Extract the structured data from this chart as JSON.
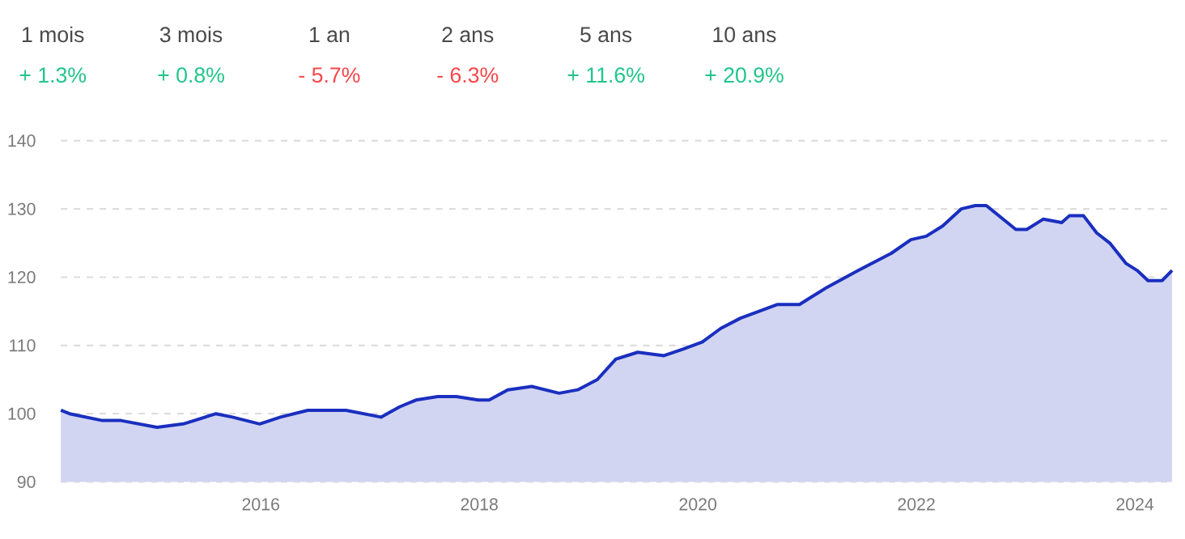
{
  "chart_data": {
    "type": "area",
    "annotations": [
      "1 mois",
      "+ 1.3%",
      "3 mois",
      "+ 0.8%",
      "1 an",
      "- 5.7%",
      "2 ans",
      "- 6.3%",
      "5 ans",
      "+ 11.6%",
      "10 ans",
      "+ 20.9%"
    ],
    "x": [
      2014.17,
      2014.25,
      2014.55,
      2014.72,
      2015.05,
      2015.29,
      2015.59,
      2015.74,
      2015.99,
      2016.18,
      2016.43,
      2016.78,
      2017.1,
      2017.27,
      2017.42,
      2017.62,
      2017.79,
      2017.99,
      2018.09,
      2018.26,
      2018.48,
      2018.73,
      2018.9,
      2019.08,
      2019.25,
      2019.45,
      2019.69,
      2019.87,
      2020.04,
      2020.21,
      2020.39,
      2020.56,
      2020.73,
      2020.93,
      2021.03,
      2021.18,
      2021.47,
      2021.77,
      2021.95,
      2022.09,
      2022.24,
      2022.41,
      2022.54,
      2022.64,
      2022.91,
      2023.01,
      2023.16,
      2023.33,
      2023.4,
      2023.53,
      2023.65,
      2023.77,
      2023.92,
      2024.02,
      2024.12,
      2024.25,
      2024.34
    ],
    "series": [
      {
        "color": "#1a2fbf",
        "values": [
          100.5,
          100,
          99,
          99,
          98,
          98.5,
          100,
          99.5,
          98.5,
          99.5,
          100.5,
          100.5,
          99.5,
          101,
          102,
          102.5,
          102.5,
          102,
          102,
          103.5,
          104,
          103,
          103.5,
          105,
          108,
          109,
          108.5,
          109.5,
          110.5,
          112.5,
          114,
          115,
          116,
          116,
          117,
          118.5,
          121,
          123.5,
          125.5,
          126,
          127.5,
          130,
          130.5,
          130.5,
          127,
          127,
          128.5,
          128,
          129,
          129,
          126.5,
          125,
          122,
          121,
          119.5,
          119.5,
          121
        ]
      }
    ],
    "xlim": [
      2014.17,
      2024.34
    ],
    "ylim": [
      90,
      140
    ],
    "xticks": [
      2016,
      2018,
      2020,
      2022,
      2024
    ],
    "yticks": [
      90,
      100,
      110,
      120,
      130,
      140
    ],
    "grid": "y"
  }
}
